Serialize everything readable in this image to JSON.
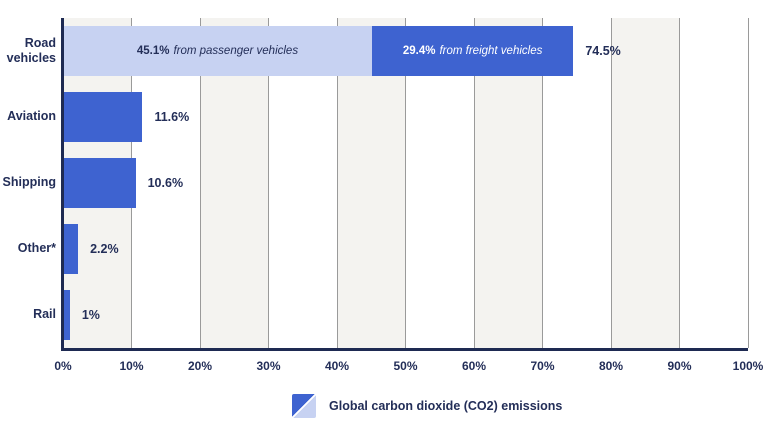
{
  "colors": {
    "background": "#FFFFFF",
    "bar_dark": "#3E63D0",
    "bar_light": "#C7D2F2",
    "axis": "#1E2A52",
    "text_navy": "#232E58",
    "text_on_dark": "#FFFFFF",
    "gridline": "#9A9A9A",
    "column_fill": "#F4F3F0"
  },
  "chart_data": {
    "type": "bar",
    "orientation": "horizontal",
    "title": "",
    "xlabel": "",
    "ylabel": "",
    "xlim": [
      0,
      100
    ],
    "x_tick_labels": [
      "0%",
      "10%",
      "20%",
      "30%",
      "40%",
      "50%",
      "60%",
      "70%",
      "80%",
      "90%",
      "100%"
    ],
    "grid": "vertical gridlines every 10%, alternating shaded background columns",
    "legend_position": "bottom",
    "categories": [
      "Road vehicles",
      "Aviation",
      "Shipping",
      "Other*",
      "Rail"
    ],
    "rows": [
      {
        "category": "Road vehicles",
        "total": 74.5,
        "total_label": "74.5%",
        "segments": [
          {
            "value": 45.1,
            "value_label": "45.1%",
            "description": "from passenger vehicles",
            "tone": "light"
          },
          {
            "value": 29.4,
            "value_label": "29.4%",
            "description": "from freight vehicles",
            "tone": "dark"
          }
        ]
      },
      {
        "category": "Aviation",
        "total": 11.6,
        "total_label": "11.6%",
        "segments": [
          {
            "value": 11.6,
            "tone": "dark"
          }
        ]
      },
      {
        "category": "Shipping",
        "total": 10.6,
        "total_label": "10.6%",
        "segments": [
          {
            "value": 10.6,
            "tone": "dark"
          }
        ]
      },
      {
        "category": "Other*",
        "total": 2.2,
        "total_label": "2.2%",
        "segments": [
          {
            "value": 2.2,
            "tone": "dark"
          }
        ]
      },
      {
        "category": "Rail",
        "total": 1,
        "total_label": "1%",
        "segments": [
          {
            "value": 1,
            "tone": "dark"
          }
        ]
      }
    ],
    "legend": {
      "label": "Global carbon dioxide (CO2) emissions",
      "swatch": "square split diagonally: dark blue top-left, light blue bottom-right"
    }
  }
}
